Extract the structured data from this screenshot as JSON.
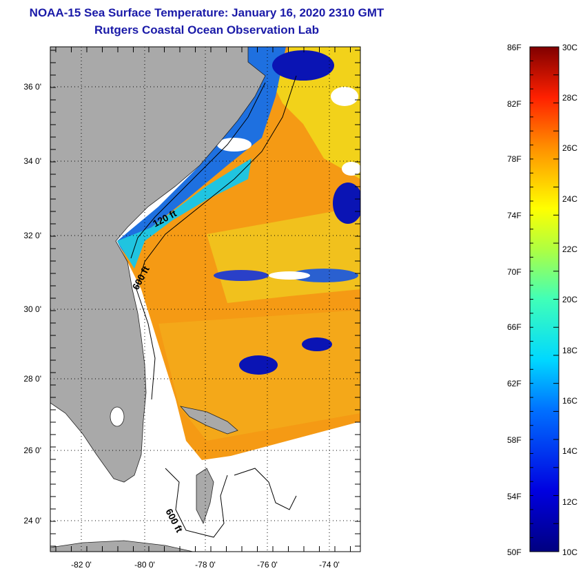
{
  "header": {
    "title": "NOAA-15 Sea Surface Temperature:  January 16, 2020 2310 GMT",
    "subtitle": "Rutgers Coastal Ocean Observation Lab"
  },
  "map": {
    "lat_labels": [
      "36 0'",
      "34 0'",
      "32 0'",
      "30 0'",
      "28 0'",
      "26 0'",
      "24 0'"
    ],
    "lon_labels": [
      "-82 0'",
      "-80 0'",
      "-78 0'",
      "-76 0'",
      "-74 0'"
    ],
    "contour_labels": [
      "120 ft",
      "600 ft",
      "600 ft"
    ],
    "colors": {
      "land": "#a9a9a9",
      "water_nodata": "#ffffff",
      "warm": "#f0960f",
      "cold": "#0a14b4"
    }
  },
  "colorbar": {
    "fahrenheit_labels": [
      "86F",
      "82F",
      "78F",
      "74F",
      "70F",
      "66F",
      "62F",
      "58F",
      "54F",
      "50F"
    ],
    "celsius_labels": [
      "30C",
      "28C",
      "26C",
      "24C",
      "22C",
      "20C",
      "18C",
      "16C",
      "14C",
      "12C",
      "10C"
    ],
    "range_f": [
      50,
      86
    ],
    "range_c": [
      10,
      30
    ]
  }
}
